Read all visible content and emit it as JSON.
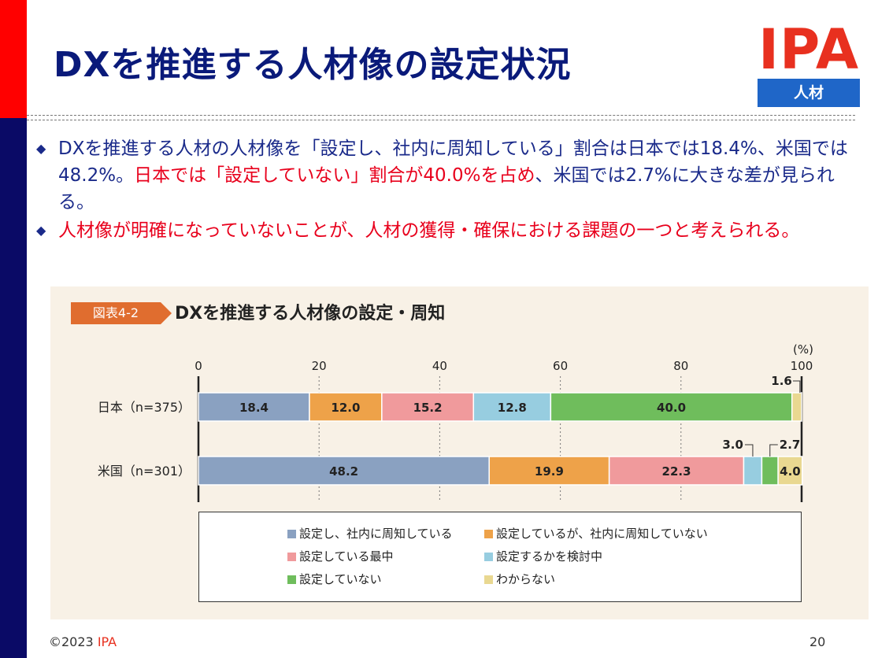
{
  "slide": {
    "title": "DXを推進する人材像の設定状況",
    "logo": {
      "text": "IPA",
      "tag": "人材"
    },
    "bullets": [
      {
        "parts": [
          {
            "text": "DXを推進する人材の人材像を「設定し、社内に周知している」割合は日本では18.4%、米国では48.2%。",
            "color": "blue"
          },
          {
            "text": "日本では「設定していない」割合が40.0%を占め",
            "color": "red"
          },
          {
            "text": "、米国では2.7%に大きな差が見られる。",
            "color": "blue"
          }
        ]
      },
      {
        "parts": [
          {
            "text": "人材像が明確になっていないことが、人材の獲得・確保における課題の一つと考えられる。",
            "color": "red"
          }
        ]
      }
    ],
    "footer": {
      "copyright": "©2023 ",
      "brand": "IPA",
      "page": "20"
    }
  },
  "figure": {
    "tag": "図表4-2",
    "title": "DXを推進する人材像の設定・周知"
  },
  "chart_data": {
    "type": "bar",
    "orientation": "horizontal",
    "stacked": true,
    "unit_label": "(%)",
    "xlim": [
      0,
      100
    ],
    "xticks": [
      0,
      20,
      40,
      60,
      80,
      100
    ],
    "categories": [
      "日本（n=375）",
      "米国（n=301）"
    ],
    "series": [
      {
        "name": "設定し、社内に周知している",
        "color": "#8aa1c1",
        "values": [
          18.4,
          48.2
        ]
      },
      {
        "name": "設定しているが、社内に周知していない",
        "color": "#eea249",
        "values": [
          12.0,
          19.9
        ]
      },
      {
        "name": "設定している最中",
        "color": "#f09a9c",
        "values": [
          15.2,
          22.3
        ]
      },
      {
        "name": "設定するかを検討中",
        "color": "#97cde0",
        "values": [
          12.8,
          3.0
        ]
      },
      {
        "name": "設定していない",
        "color": "#6fbd5c",
        "values": [
          40.0,
          2.7
        ]
      },
      {
        "name": "わからない",
        "color": "#e9d891",
        "values": [
          1.6,
          4.0
        ]
      }
    ],
    "grid": "dotted vertical",
    "legend_position": "bottom"
  }
}
